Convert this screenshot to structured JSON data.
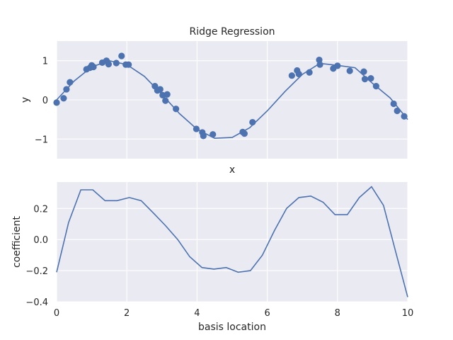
{
  "chart_data": [
    {
      "type": "scatter",
      "title": "Ridge Regression",
      "xlabel": "x",
      "ylabel": "y",
      "xlim": [
        0,
        10
      ],
      "ylim": [
        -1.5,
        1.5
      ],
      "yticks": [
        -1,
        0,
        1
      ],
      "ytick_labels": [
        "−1",
        "0",
        "1"
      ],
      "xticks_labels_visible": false,
      "grid": true,
      "background": "#eaeaf2",
      "color": "#4c72b0",
      "points": [
        [
          0.0,
          -0.07
        ],
        [
          0.2,
          0.04
        ],
        [
          0.28,
          0.27
        ],
        [
          0.38,
          0.45
        ],
        [
          0.85,
          0.78
        ],
        [
          0.95,
          0.82
        ],
        [
          1.0,
          0.88
        ],
        [
          1.05,
          0.84
        ],
        [
          1.3,
          0.95
        ],
        [
          1.42,
          1.0
        ],
        [
          1.48,
          0.91
        ],
        [
          1.7,
          0.94
        ],
        [
          1.85,
          1.12
        ],
        [
          1.97,
          0.9
        ],
        [
          2.05,
          0.9
        ],
        [
          2.8,
          0.35
        ],
        [
          2.87,
          0.24
        ],
        [
          2.95,
          0.27
        ],
        [
          3.02,
          0.12
        ],
        [
          3.1,
          -0.02
        ],
        [
          3.15,
          0.14
        ],
        [
          3.4,
          -0.23
        ],
        [
          3.98,
          -0.74
        ],
        [
          4.15,
          -0.83
        ],
        [
          4.18,
          -0.92
        ],
        [
          4.45,
          -0.88
        ],
        [
          5.3,
          -0.82
        ],
        [
          5.35,
          -0.86
        ],
        [
          5.58,
          -0.57
        ],
        [
          6.7,
          0.62
        ],
        [
          6.85,
          0.75
        ],
        [
          6.9,
          0.66
        ],
        [
          7.2,
          0.7
        ],
        [
          7.48,
          1.02
        ],
        [
          7.5,
          0.9
        ],
        [
          7.88,
          0.8
        ],
        [
          8.0,
          0.87
        ],
        [
          8.35,
          0.74
        ],
        [
          8.75,
          0.72
        ],
        [
          8.78,
          0.53
        ],
        [
          8.95,
          0.55
        ],
        [
          9.1,
          0.35
        ],
        [
          9.6,
          -0.1
        ],
        [
          9.7,
          -0.28
        ],
        [
          9.9,
          -0.42
        ]
      ],
      "fit_line": {
        "x": [
          0.0,
          0.5,
          1.0,
          1.5,
          2.0,
          2.5,
          3.0,
          3.5,
          4.0,
          4.5,
          5.0,
          5.5,
          6.0,
          6.5,
          7.0,
          7.5,
          8.0,
          8.5,
          9.0,
          9.5,
          10.0
        ],
        "y": [
          0.0,
          0.48,
          0.84,
          1.0,
          0.9,
          0.6,
          0.14,
          -0.35,
          -0.75,
          -0.98,
          -0.96,
          -0.71,
          -0.28,
          0.21,
          0.65,
          0.93,
          0.88,
          0.82,
          0.42,
          0.05,
          -0.5
        ]
      }
    },
    {
      "type": "line",
      "xlabel": "basis location",
      "ylabel": "coefficient",
      "xlim": [
        0,
        10
      ],
      "ylim": [
        -0.4,
        0.37
      ],
      "xticks": [
        0,
        2,
        4,
        6,
        8,
        10
      ],
      "xtick_labels": [
        "0",
        "2",
        "4",
        "6",
        "8",
        "10"
      ],
      "yticks": [
        -0.4,
        -0.2,
        0.0,
        0.2
      ],
      "ytick_labels": [
        "−0.4",
        "−0.2",
        "0.0",
        "0.2"
      ],
      "grid": true,
      "background": "#eaeaf2",
      "color": "#4c72b0",
      "x": [
        0.0,
        0.34,
        0.69,
        1.03,
        1.38,
        1.72,
        2.07,
        2.41,
        2.76,
        3.1,
        3.45,
        3.79,
        4.14,
        4.48,
        4.83,
        5.17,
        5.52,
        5.86,
        6.21,
        6.55,
        6.9,
        7.24,
        7.59,
        7.93,
        8.28,
        8.62,
        8.97,
        9.31,
        9.66,
        10.0
      ],
      "y": [
        -0.21,
        0.11,
        0.32,
        0.32,
        0.25,
        0.25,
        0.27,
        0.25,
        0.17,
        0.09,
        0.0,
        -0.11,
        -0.18,
        -0.19,
        -0.18,
        -0.21,
        -0.2,
        -0.1,
        0.06,
        0.2,
        0.27,
        0.28,
        0.24,
        0.16,
        0.16,
        0.27,
        0.34,
        0.22,
        -0.08,
        -0.37
      ]
    }
  ]
}
